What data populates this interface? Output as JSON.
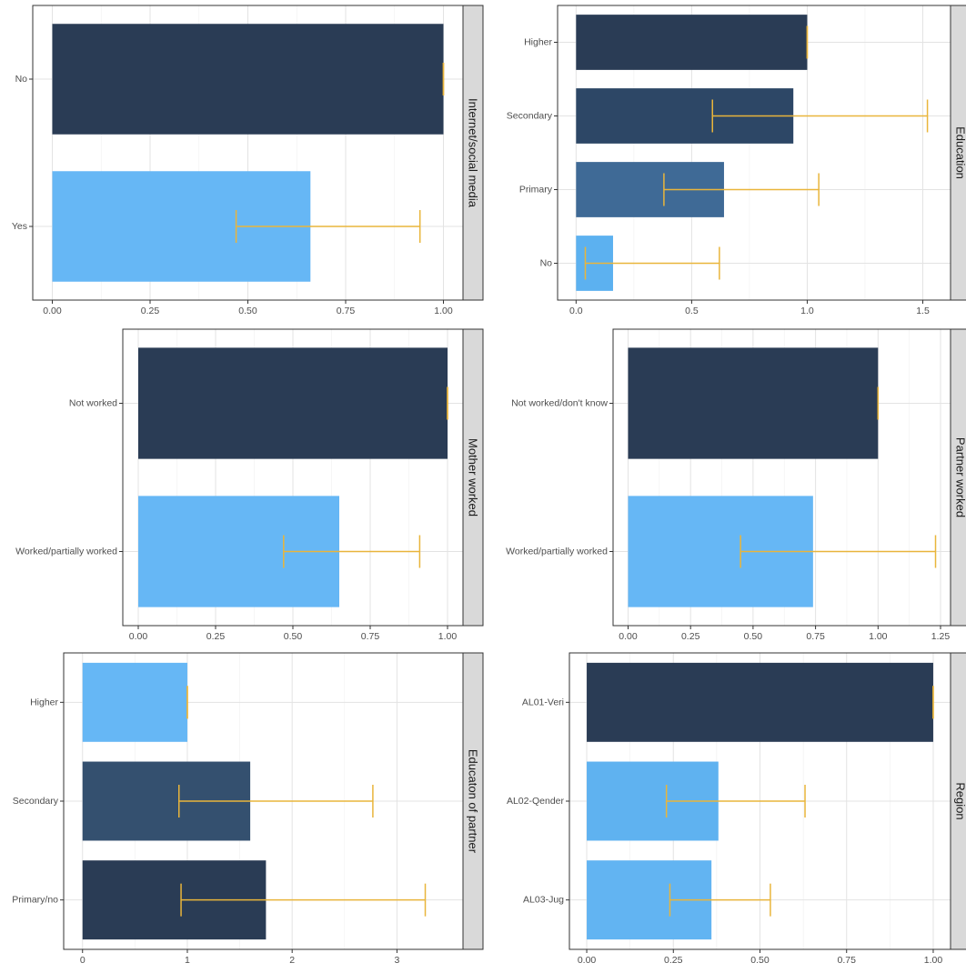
{
  "chart_data": [
    {
      "type": "bar",
      "orientation": "horizontal",
      "strip_label": "Internet/social media",
      "categories": [
        "No",
        "Yes"
      ],
      "values": [
        1.0,
        0.66
      ],
      "ci_low": [
        1.0,
        0.47
      ],
      "ci_high": [
        1.0,
        0.94
      ],
      "colors": [
        "#2a3c55",
        "#66b7f5"
      ],
      "xlim": [
        -0.05,
        1.05
      ],
      "xticks": [
        0,
        0.25,
        0.5,
        0.75,
        1.0
      ],
      "xtick_labels": [
        "0.00",
        "0.25",
        "0.50",
        "0.75",
        "1.00"
      ],
      "grid": true
    },
    {
      "type": "bar",
      "orientation": "horizontal",
      "strip_label": "Education",
      "categories": [
        "Higher",
        "Secondary",
        "Primary",
        "No"
      ],
      "values": [
        1.0,
        0.94,
        0.64,
        0.16
      ],
      "ci_low": [
        1.0,
        0.59,
        0.38,
        0.04
      ],
      "ci_high": [
        1.0,
        1.52,
        1.05,
        0.62
      ],
      "colors": [
        "#2a3c55",
        "#2d4766",
        "#3f6a96",
        "#5cb1f0"
      ],
      "xlim": [
        -0.08,
        1.62
      ],
      "xticks": [
        0,
        0.5,
        1.0,
        1.5
      ],
      "xtick_labels": [
        "0.0",
        "0.5",
        "1.0",
        "1.5"
      ],
      "grid": true
    },
    {
      "type": "bar",
      "orientation": "horizontal",
      "strip_label": "Mother worked",
      "categories": [
        "Not worked",
        "Worked/partially worked"
      ],
      "values": [
        1.0,
        0.65
      ],
      "ci_low": [
        1.0,
        0.47
      ],
      "ci_high": [
        1.0,
        0.91
      ],
      "colors": [
        "#2a3c55",
        "#66b7f5"
      ],
      "xlim": [
        -0.05,
        1.05
      ],
      "xticks": [
        0,
        0.25,
        0.5,
        0.75,
        1.0
      ],
      "xtick_labels": [
        "0.00",
        "0.25",
        "0.50",
        "0.75",
        "1.00"
      ],
      "grid": true
    },
    {
      "type": "bar",
      "orientation": "horizontal",
      "strip_label": "Partner worked",
      "categories": [
        "Not worked/don't know",
        "Worked/partially worked"
      ],
      "values": [
        1.0,
        0.74
      ],
      "ci_low": [
        1.0,
        0.45
      ],
      "ci_high": [
        1.0,
        1.23
      ],
      "colors": [
        "#2a3c55",
        "#66b7f5"
      ],
      "xlim": [
        -0.06,
        1.29
      ],
      "xticks": [
        0,
        0.25,
        0.5,
        0.75,
        1.0,
        1.25
      ],
      "xtick_labels": [
        "0.00",
        "0.25",
        "0.50",
        "0.75",
        "1.00",
        "1.25"
      ],
      "grid": true
    },
    {
      "type": "bar",
      "orientation": "horizontal",
      "strip_label": "Educaton of partner",
      "categories": [
        "Higher",
        "Secondary",
        "Primary/no"
      ],
      "values": [
        1.0,
        1.6,
        1.75
      ],
      "ci_low": [
        1.0,
        0.92,
        0.94
      ],
      "ci_high": [
        1.0,
        2.77,
        3.27
      ],
      "colors": [
        "#66b7f5",
        "#34506f",
        "#2a3c55"
      ],
      "xlim": [
        -0.18,
        3.63
      ],
      "xticks": [
        0,
        1,
        2,
        3
      ],
      "xtick_labels": [
        "0",
        "1",
        "2",
        "3"
      ],
      "grid": true
    },
    {
      "type": "bar",
      "orientation": "horizontal",
      "strip_label": "Region",
      "categories": [
        "AL01-Veri",
        "AL02-Qender",
        "AL03-Jug"
      ],
      "values": [
        1.0,
        0.38,
        0.36
      ],
      "ci_low": [
        1.0,
        0.23,
        0.24
      ],
      "ci_high": [
        1.0,
        0.63,
        0.53
      ],
      "colors": [
        "#2a3c55",
        "#5fb2f0",
        "#62b4f2"
      ],
      "xlim": [
        -0.05,
        1.05
      ],
      "xticks": [
        0,
        0.25,
        0.5,
        0.75,
        1.0
      ],
      "xtick_labels": [
        "0.00",
        "0.25",
        "0.50",
        "0.75",
        "1.00"
      ],
      "grid": true
    }
  ],
  "error_bar_color": "#e9b53b"
}
